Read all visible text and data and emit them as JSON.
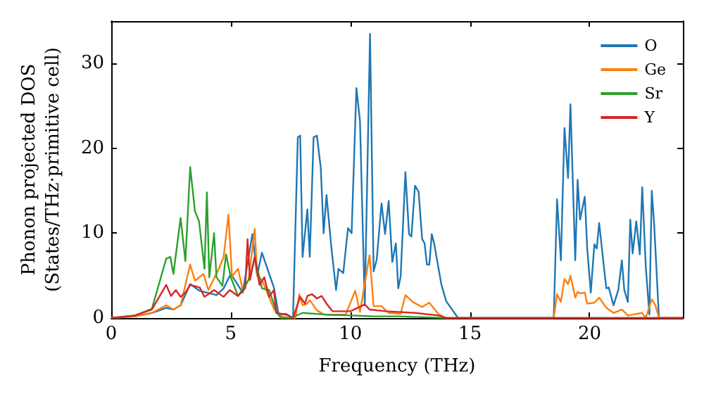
{
  "chart_data": {
    "type": "line",
    "xlabel": "Frequency (THz)",
    "ylabel": "Phonon projected DOS\n(States/THz·primitive cell)",
    "xlim": [
      0,
      23.9
    ],
    "xticks": [
      0,
      5,
      10,
      15,
      20
    ],
    "ylim": [
      0,
      35
    ],
    "yticks": [
      0,
      10,
      20,
      30
    ],
    "grid": false,
    "legend": "top right",
    "marker": "none",
    "line_style": "solid",
    "series": [
      {
        "name": "O",
        "color": "#1f77b4",
        "x": [
          0,
          1,
          1.7,
          2.3,
          2.6,
          2.9,
          3.3,
          3.7,
          4.0,
          4.4,
          4.7,
          5.0,
          5.5,
          5.9,
          6.1,
          6.3,
          6.8,
          7.0,
          7.3,
          7.6,
          7.8,
          7.9,
          8.0,
          8.2,
          8.3,
          8.46,
          8.6,
          8.76,
          8.88,
          9.0,
          9.2,
          9.4,
          9.5,
          9.7,
          9.9,
          10.05,
          10.25,
          10.4,
          10.6,
          10.82,
          10.97,
          11.1,
          11.3,
          11.45,
          11.6,
          11.75,
          11.9,
          12.0,
          12.1,
          12.3,
          12.45,
          12.55,
          12.7,
          12.85,
          13.0,
          13.1,
          13.2,
          13.3,
          13.4,
          13.5,
          13.8,
          14.0,
          14.5,
          18.4,
          18.5,
          18.64,
          18.8,
          18.95,
          19.1,
          19.2,
          19.4,
          19.5,
          19.6,
          19.8,
          19.9,
          20.05,
          20.2,
          20.3,
          20.4,
          20.6,
          20.7,
          20.8,
          21.0,
          21.1,
          21.2,
          21.35,
          21.45,
          21.6,
          21.7,
          21.8,
          21.95,
          22.1,
          22.2,
          22.35,
          22.5,
          22.6,
          22.7,
          22.9,
          23.9
        ],
        "values": [
          0,
          0.2,
          0.6,
          1.2,
          1.0,
          1.5,
          4.0,
          3.2,
          3.0,
          2.7,
          3.5,
          5.2,
          3.0,
          9.9,
          5.0,
          7.7,
          3.6,
          0.4,
          0.5,
          0,
          21.3,
          21.5,
          7.2,
          12.8,
          7.2,
          21.3,
          21.5,
          17.7,
          10.0,
          14.5,
          8.4,
          3.3,
          5.8,
          5.3,
          10.6,
          10.0,
          27.1,
          23.2,
          1.5,
          33.5,
          5.5,
          6.9,
          13.5,
          9.9,
          13.8,
          6.6,
          8.8,
          3.5,
          4.9,
          17.2,
          9.9,
          9.6,
          15.6,
          14.9,
          9.3,
          8.8,
          6.3,
          6.3,
          9.9,
          8.8,
          4.0,
          2.0,
          0,
          0,
          0,
          14.0,
          6.8,
          22.4,
          16.5,
          25.2,
          6.8,
          16.3,
          11.6,
          14.3,
          8.2,
          3.0,
          8.7,
          8.2,
          11.2,
          6.0,
          3.5,
          3.6,
          1.5,
          2.4,
          3.3,
          6.8,
          3.3,
          1.9,
          11.6,
          7.6,
          11.4,
          7.5,
          15.4,
          6.0,
          0.4,
          15.0,
          11.0,
          0,
          0
        ]
      },
      {
        "name": "Ge",
        "color": "#ff7f0e",
        "x": [
          0,
          1,
          1.7,
          2.3,
          2.6,
          2.9,
          3.3,
          3.5,
          3.86,
          4.06,
          4.5,
          4.7,
          4.9,
          5.05,
          5.3,
          5.5,
          5.74,
          6.0,
          6.1,
          6.3,
          6.8,
          7.0,
          7.4,
          7.7,
          7.86,
          8.0,
          8.2,
          8.3,
          8.6,
          8.9,
          9.8,
          10.2,
          10.4,
          10.8,
          10.97,
          11.3,
          11.6,
          12.1,
          12.3,
          12.6,
          13.0,
          13.3,
          13.7,
          14.0,
          18.5,
          18.64,
          18.8,
          18.95,
          19.1,
          19.2,
          19.4,
          19.5,
          19.6,
          19.8,
          19.9,
          20.2,
          20.4,
          20.7,
          21.0,
          21.35,
          21.6,
          22.2,
          22.35,
          22.6,
          22.75,
          22.9,
          23.9
        ],
        "values": [
          0,
          0.2,
          0.6,
          1.5,
          1.0,
          1.5,
          6.3,
          4.4,
          5.2,
          3.3,
          5.8,
          7.2,
          12.2,
          4.9,
          5.8,
          3.3,
          4.5,
          10.5,
          5.0,
          4.5,
          1.1,
          0.3,
          0,
          0,
          2.8,
          1.5,
          1.7,
          2.1,
          0.9,
          0.4,
          0.4,
          3.2,
          0.7,
          7.4,
          1.4,
          1.4,
          0.6,
          0.5,
          2.7,
          1.9,
          1.3,
          1.8,
          0.4,
          0,
          0,
          2.8,
          1.9,
          4.6,
          4.0,
          5.0,
          2.4,
          3.1,
          2.9,
          3.0,
          1.7,
          1.8,
          2.4,
          1.2,
          0.6,
          1.0,
          0.3,
          0.6,
          0,
          2.2,
          1.5,
          0,
          0
        ]
      },
      {
        "name": "Sr",
        "color": "#2ca02c",
        "x": [
          0,
          1,
          1.7,
          2.3,
          2.47,
          2.6,
          2.9,
          3.1,
          3.3,
          3.5,
          3.67,
          3.9,
          4.0,
          4.1,
          4.3,
          4.4,
          4.65,
          4.8,
          5.0,
          5.3,
          5.6,
          5.8,
          6.0,
          6.3,
          6.6,
          6.9,
          7.1,
          7.5,
          8.0,
          9.0,
          10.0,
          11.0,
          12.0,
          14.0,
          23.9
        ],
        "values": [
          0,
          0.3,
          1.1,
          7.0,
          7.2,
          5.2,
          11.8,
          6.7,
          17.8,
          12.6,
          11.4,
          5.8,
          14.8,
          4.8,
          10.0,
          4.8,
          3.8,
          7.5,
          4.8,
          2.6,
          3.8,
          4.8,
          7.2,
          3.5,
          3.3,
          0.8,
          0,
          0,
          0.6,
          0.4,
          0.3,
          0.2,
          0.2,
          0,
          0
        ]
      },
      {
        "name": "Y",
        "color": "#d62728",
        "x": [
          0,
          1,
          1.7,
          2.3,
          2.5,
          2.7,
          2.9,
          3.1,
          3.3,
          3.7,
          3.9,
          4.3,
          4.7,
          4.95,
          5.3,
          5.6,
          5.7,
          5.8,
          6.0,
          6.2,
          6.4,
          6.6,
          6.8,
          6.9,
          7.3,
          7.6,
          7.9,
          8.1,
          8.2,
          8.4,
          8.6,
          8.8,
          9.0,
          9.25,
          10.0,
          10.6,
          10.8,
          11.5,
          12.7,
          13.7,
          14.0,
          23.9
        ],
        "values": [
          0,
          0.3,
          1.0,
          3.9,
          2.6,
          3.3,
          2.5,
          3.0,
          3.9,
          3.6,
          2.5,
          3.3,
          2.5,
          3.3,
          2.6,
          3.5,
          9.3,
          4.5,
          7.2,
          3.9,
          4.8,
          2.5,
          3.3,
          0.6,
          0.4,
          0,
          2.5,
          1.7,
          2.6,
          2.8,
          2.3,
          2.6,
          1.7,
          0.8,
          0.8,
          1.6,
          1.0,
          0.8,
          0.6,
          0.3,
          0,
          0
        ]
      }
    ]
  }
}
